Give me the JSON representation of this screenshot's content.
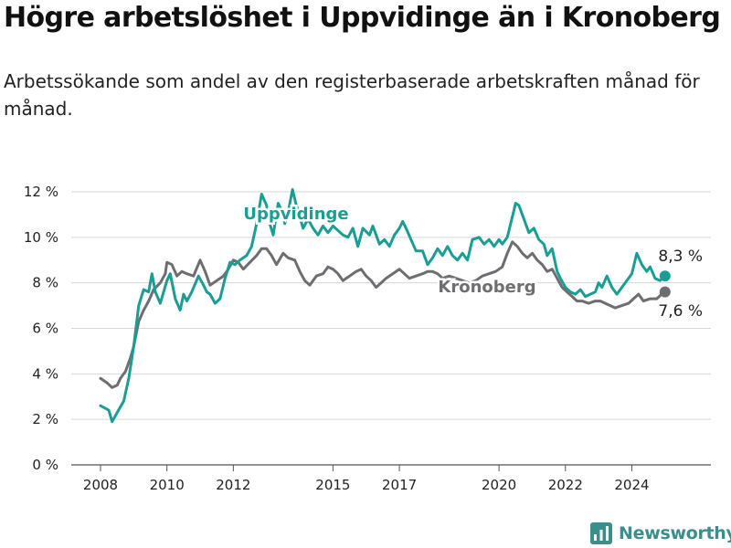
{
  "title": "Högre arbetslöshet i Uppvidinge än i Kronoberg",
  "subtitle": "Arbetssökande som andel av den registerbaserade arbetskraften månad för månad.",
  "brand": {
    "name": "Newsworthy",
    "icon": "bar-chart-logo-icon",
    "color": "#3a8f8a"
  },
  "chart_data": {
    "type": "line",
    "title": "Högre arbetslöshet i Uppvidinge än i Kronoberg",
    "xlabel": "",
    "ylabel": "",
    "ylim": [
      0,
      12
    ],
    "xlim": [
      2008,
      2025.5
    ],
    "grid": "horizontal",
    "legend": "inline labels",
    "y_ticks": [
      0,
      2,
      4,
      6,
      8,
      10,
      12
    ],
    "y_tick_labels": [
      "0 %",
      "2 %",
      "4 %",
      "6 %",
      "8 %",
      "10 %",
      "12 %"
    ],
    "x_ticks": [
      2008,
      2010,
      2012,
      2015,
      2017,
      2020,
      2022,
      2024
    ],
    "x_tick_labels": [
      "2008",
      "2010",
      "2012",
      "2015",
      "2017",
      "2020",
      "2022",
      "2024"
    ],
    "series": [
      {
        "name": "Uppvidinge",
        "color": "#1a9e93",
        "end_label": "8,3 %",
        "points": [
          [
            2008.0,
            2.6
          ],
          [
            2008.25,
            2.4
          ],
          [
            2008.35,
            1.9
          ],
          [
            2008.5,
            2.3
          ],
          [
            2008.7,
            2.8
          ],
          [
            2008.85,
            3.8
          ],
          [
            2009.0,
            5.2
          ],
          [
            2009.15,
            7.0
          ],
          [
            2009.3,
            7.7
          ],
          [
            2009.45,
            7.6
          ],
          [
            2009.55,
            8.4
          ],
          [
            2009.65,
            7.6
          ],
          [
            2009.8,
            7.1
          ],
          [
            2010.0,
            8.1
          ],
          [
            2010.1,
            8.4
          ],
          [
            2010.25,
            7.3
          ],
          [
            2010.4,
            6.8
          ],
          [
            2010.5,
            7.5
          ],
          [
            2010.6,
            7.2
          ],
          [
            2010.75,
            7.6
          ],
          [
            2010.95,
            8.3
          ],
          [
            2011.1,
            7.9
          ],
          [
            2011.2,
            7.6
          ],
          [
            2011.3,
            7.5
          ],
          [
            2011.45,
            7.1
          ],
          [
            2011.6,
            7.3
          ],
          [
            2011.75,
            8.2
          ],
          [
            2011.9,
            8.9
          ],
          [
            2012.05,
            8.8
          ],
          [
            2012.2,
            9.0
          ],
          [
            2012.4,
            9.2
          ],
          [
            2012.55,
            9.6
          ],
          [
            2012.7,
            10.6
          ],
          [
            2012.85,
            11.9
          ],
          [
            2013.0,
            11.4
          ],
          [
            2013.1,
            10.6
          ],
          [
            2013.2,
            10.1
          ],
          [
            2013.35,
            11.5
          ],
          [
            2013.45,
            11.2
          ],
          [
            2013.55,
            10.6
          ],
          [
            2013.65,
            11.1
          ],
          [
            2013.78,
            12.1
          ],
          [
            2013.88,
            11.5
          ],
          [
            2014.0,
            10.9
          ],
          [
            2014.1,
            10.4
          ],
          [
            2014.25,
            10.8
          ],
          [
            2014.4,
            10.4
          ],
          [
            2014.55,
            10.1
          ],
          [
            2014.7,
            10.5
          ],
          [
            2014.85,
            10.2
          ],
          [
            2015.0,
            10.5
          ],
          [
            2015.15,
            10.3
          ],
          [
            2015.3,
            10.1
          ],
          [
            2015.45,
            10.0
          ],
          [
            2015.6,
            10.4
          ],
          [
            2015.75,
            9.6
          ],
          [
            2015.9,
            10.4
          ],
          [
            2016.1,
            10.1
          ],
          [
            2016.2,
            10.5
          ],
          [
            2016.4,
            9.7
          ],
          [
            2016.55,
            9.9
          ],
          [
            2016.7,
            9.6
          ],
          [
            2016.85,
            10.1
          ],
          [
            2017.0,
            10.4
          ],
          [
            2017.1,
            10.7
          ],
          [
            2017.2,
            10.4
          ],
          [
            2017.35,
            9.9
          ],
          [
            2017.5,
            9.4
          ],
          [
            2017.7,
            9.4
          ],
          [
            2017.85,
            8.8
          ],
          [
            2018.0,
            9.1
          ],
          [
            2018.15,
            9.5
          ],
          [
            2018.3,
            9.2
          ],
          [
            2018.45,
            9.6
          ],
          [
            2018.6,
            9.2
          ],
          [
            2018.75,
            9.0
          ],
          [
            2018.9,
            9.3
          ],
          [
            2019.05,
            9.0
          ],
          [
            2019.2,
            9.9
          ],
          [
            2019.4,
            10.0
          ],
          [
            2019.55,
            9.7
          ],
          [
            2019.7,
            9.9
          ],
          [
            2019.85,
            9.6
          ],
          [
            2020.0,
            9.9
          ],
          [
            2020.1,
            9.7
          ],
          [
            2020.25,
            10.0
          ],
          [
            2020.4,
            10.9
          ],
          [
            2020.5,
            11.5
          ],
          [
            2020.6,
            11.4
          ],
          [
            2020.75,
            10.8
          ],
          [
            2020.9,
            10.2
          ],
          [
            2021.05,
            10.4
          ],
          [
            2021.2,
            9.9
          ],
          [
            2021.35,
            9.7
          ],
          [
            2021.45,
            9.2
          ],
          [
            2021.6,
            9.5
          ],
          [
            2021.75,
            8.5
          ],
          [
            2021.85,
            8.2
          ],
          [
            2022.0,
            7.8
          ],
          [
            2022.15,
            7.6
          ],
          [
            2022.3,
            7.5
          ],
          [
            2022.45,
            7.7
          ],
          [
            2022.6,
            7.4
          ],
          [
            2022.75,
            7.5
          ],
          [
            2022.9,
            7.6
          ],
          [
            2023.0,
            8.0
          ],
          [
            2023.1,
            7.8
          ],
          [
            2023.25,
            8.3
          ],
          [
            2023.4,
            7.8
          ],
          [
            2023.55,
            7.5
          ],
          [
            2023.7,
            7.8
          ],
          [
            2023.85,
            8.1
          ],
          [
            2024.0,
            8.4
          ],
          [
            2024.15,
            9.3
          ],
          [
            2024.3,
            8.8
          ],
          [
            2024.45,
            8.5
          ],
          [
            2024.55,
            8.7
          ],
          [
            2024.7,
            8.2
          ],
          [
            2024.85,
            8.1
          ],
          [
            2025.0,
            8.3
          ]
        ]
      },
      {
        "name": "Kronoberg",
        "color": "#6e6e72",
        "end_label": "7,6 %",
        "points": [
          [
            2008.0,
            3.8
          ],
          [
            2008.2,
            3.6
          ],
          [
            2008.35,
            3.4
          ],
          [
            2008.5,
            3.5
          ],
          [
            2008.6,
            3.8
          ],
          [
            2008.75,
            4.1
          ],
          [
            2008.9,
            4.7
          ],
          [
            2009.0,
            5.2
          ],
          [
            2009.15,
            6.3
          ],
          [
            2009.3,
            6.8
          ],
          [
            2009.45,
            7.2
          ],
          [
            2009.6,
            7.7
          ],
          [
            2009.8,
            8.0
          ],
          [
            2009.95,
            8.4
          ],
          [
            2010.0,
            8.9
          ],
          [
            2010.15,
            8.8
          ],
          [
            2010.3,
            8.3
          ],
          [
            2010.45,
            8.5
          ],
          [
            2010.6,
            8.4
          ],
          [
            2010.8,
            8.3
          ],
          [
            2011.0,
            9.0
          ],
          [
            2011.15,
            8.5
          ],
          [
            2011.3,
            7.9
          ],
          [
            2011.5,
            8.1
          ],
          [
            2011.7,
            8.3
          ],
          [
            2011.85,
            8.6
          ],
          [
            2012.0,
            9.0
          ],
          [
            2012.15,
            8.9
          ],
          [
            2012.3,
            8.6
          ],
          [
            2012.5,
            8.9
          ],
          [
            2012.7,
            9.2
          ],
          [
            2012.85,
            9.5
          ],
          [
            2013.0,
            9.5
          ],
          [
            2013.15,
            9.2
          ],
          [
            2013.3,
            8.8
          ],
          [
            2013.5,
            9.3
          ],
          [
            2013.65,
            9.1
          ],
          [
            2013.85,
            9.0
          ],
          [
            2014.0,
            8.5
          ],
          [
            2014.15,
            8.1
          ],
          [
            2014.3,
            7.9
          ],
          [
            2014.5,
            8.3
          ],
          [
            2014.7,
            8.4
          ],
          [
            2014.85,
            8.7
          ],
          [
            2015.0,
            8.6
          ],
          [
            2015.15,
            8.4
          ],
          [
            2015.3,
            8.1
          ],
          [
            2015.5,
            8.3
          ],
          [
            2015.7,
            8.5
          ],
          [
            2015.85,
            8.6
          ],
          [
            2016.0,
            8.3
          ],
          [
            2016.15,
            8.1
          ],
          [
            2016.3,
            7.8
          ],
          [
            2016.45,
            8.0
          ],
          [
            2016.6,
            8.2
          ],
          [
            2016.8,
            8.4
          ],
          [
            2017.0,
            8.6
          ],
          [
            2017.15,
            8.4
          ],
          [
            2017.3,
            8.2
          ],
          [
            2017.5,
            8.3
          ],
          [
            2017.7,
            8.4
          ],
          [
            2017.85,
            8.5
          ],
          [
            2018.0,
            8.5
          ],
          [
            2018.15,
            8.4
          ],
          [
            2018.3,
            8.2
          ],
          [
            2018.5,
            8.3
          ],
          [
            2018.7,
            8.2
          ],
          [
            2018.9,
            8.1
          ],
          [
            2019.1,
            8.0
          ],
          [
            2019.3,
            8.1
          ],
          [
            2019.5,
            8.3
          ],
          [
            2019.7,
            8.4
          ],
          [
            2019.9,
            8.5
          ],
          [
            2020.1,
            8.7
          ],
          [
            2020.25,
            9.3
          ],
          [
            2020.4,
            9.8
          ],
          [
            2020.55,
            9.6
          ],
          [
            2020.7,
            9.3
          ],
          [
            2020.85,
            9.1
          ],
          [
            2021.0,
            9.3
          ],
          [
            2021.15,
            9.0
          ],
          [
            2021.3,
            8.8
          ],
          [
            2021.45,
            8.5
          ],
          [
            2021.6,
            8.6
          ],
          [
            2021.75,
            8.2
          ],
          [
            2021.9,
            7.8
          ],
          [
            2022.05,
            7.6
          ],
          [
            2022.2,
            7.4
          ],
          [
            2022.35,
            7.2
          ],
          [
            2022.5,
            7.2
          ],
          [
            2022.7,
            7.1
          ],
          [
            2022.9,
            7.2
          ],
          [
            2023.05,
            7.2
          ],
          [
            2023.2,
            7.1
          ],
          [
            2023.35,
            7.0
          ],
          [
            2023.5,
            6.9
          ],
          [
            2023.7,
            7.0
          ],
          [
            2023.9,
            7.1
          ],
          [
            2024.05,
            7.3
          ],
          [
            2024.2,
            7.5
          ],
          [
            2024.35,
            7.2
          ],
          [
            2024.55,
            7.3
          ],
          [
            2024.75,
            7.3
          ],
          [
            2024.9,
            7.5
          ],
          [
            2025.0,
            7.6
          ]
        ]
      }
    ]
  }
}
